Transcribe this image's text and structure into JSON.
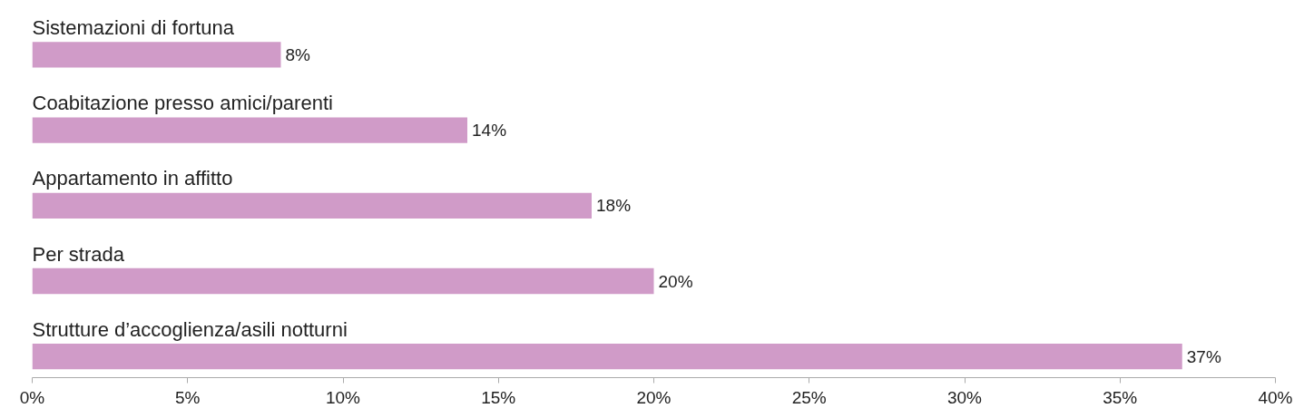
{
  "chart_data": {
    "type": "bar",
    "orientation": "horizontal",
    "categories": [
      "Sistemazioni di fortuna",
      "Coabitazione presso amici/parenti",
      "Appartamento in affitto",
      "Per strada",
      "Strutture d’accoglienza/asili notturni"
    ],
    "values": [
      8,
      14,
      18,
      20,
      37
    ],
    "value_labels": [
      "8%",
      "14%",
      "18%",
      "20%",
      "37%"
    ],
    "color": "#d09bc8",
    "xlim": [
      0,
      40
    ],
    "xticks": [
      {
        "value": 0,
        "label": "0%"
      },
      {
        "value": 5,
        "label": "5%"
      },
      {
        "value": 10,
        "label": "10%"
      },
      {
        "value": 15,
        "label": "15%"
      },
      {
        "value": 20,
        "label": "20%"
      },
      {
        "value": 25,
        "label": "25%"
      },
      {
        "value": 30,
        "label": "30%"
      },
      {
        "value": 35,
        "label": "35%"
      },
      {
        "value": 40,
        "label": "40%"
      }
    ],
    "grid": false
  }
}
